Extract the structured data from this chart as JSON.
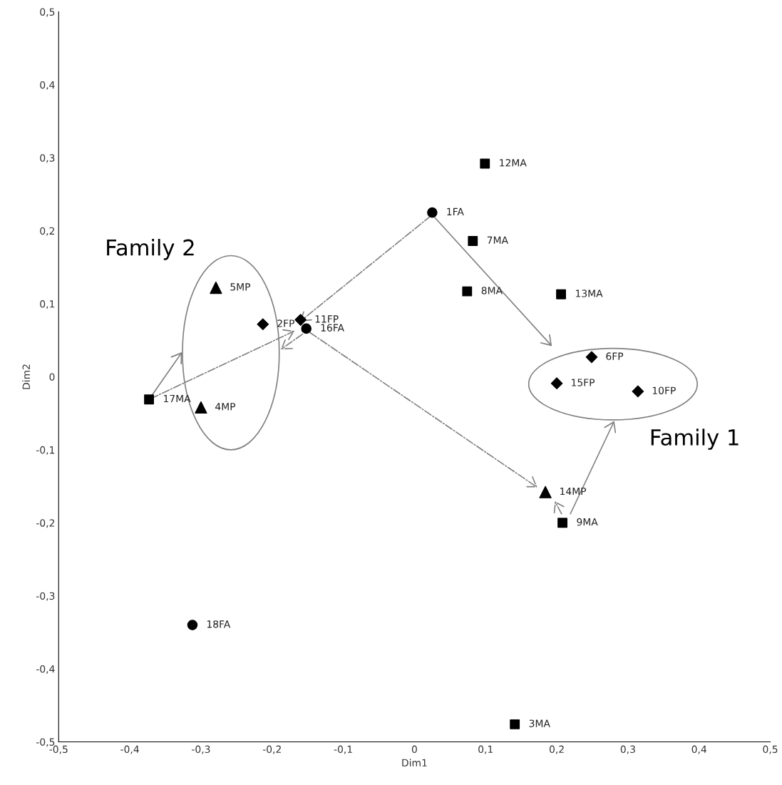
{
  "chart_data": {
    "type": "scatter",
    "xlabel": "Dim1",
    "ylabel": "Dim2",
    "xlim": [
      -0.5,
      0.5
    ],
    "ylim": [
      -0.5,
      0.5
    ],
    "xticks": [
      {
        "value": -0.5,
        "label": "-0,5"
      },
      {
        "value": -0.4,
        "label": "-0,4"
      },
      {
        "value": -0.3,
        "label": "-0,3"
      },
      {
        "value": -0.2,
        "label": "-0,2"
      },
      {
        "value": -0.1,
        "label": "-0,1"
      },
      0,
      {
        "value": 0.1,
        "label": "0,1"
      },
      {
        "value": 0.2,
        "label": "0,2"
      },
      {
        "value": 0.3,
        "label": "0,3"
      },
      {
        "value": 0.4,
        "label": "0,4"
      },
      {
        "value": 0.5,
        "label": "0,5"
      }
    ],
    "yticks": [
      {
        "value": -0.5,
        "label": "-0,5"
      },
      {
        "value": -0.4,
        "label": "-0,4"
      },
      {
        "value": -0.3,
        "label": "-0,3"
      },
      {
        "value": -0.2,
        "label": "-0,2"
      },
      {
        "value": -0.1,
        "label": "-0,1"
      },
      0,
      {
        "value": 0.1,
        "label": "0,1"
      },
      {
        "value": 0.2,
        "label": "0,2"
      },
      {
        "value": 0.3,
        "label": "0,3"
      },
      {
        "value": 0.4,
        "label": "0,4"
      },
      {
        "value": 0.5,
        "label": "0,5"
      }
    ],
    "grid": false,
    "series": [
      {
        "color": "#000000",
        "marker": "circle",
        "x": [
          0.025,
          -0.312,
          -0.152
        ],
        "values": [
          0.225,
          -0.34,
          0.066
        ]
      },
      {
        "color": "#000000",
        "marker": "square",
        "x": [
          0.099,
          0.082,
          0.074,
          0.206,
          0.208,
          0.141,
          -0.373
        ],
        "values": [
          0.292,
          0.186,
          0.117,
          0.113,
          -0.2,
          -0.476,
          -0.031
        ]
      },
      {
        "color": "#000000",
        "marker": "triangle",
        "x": [
          0.184,
          -0.3,
          -0.279
        ],
        "values": [
          -0.158,
          -0.042,
          0.122
        ]
      },
      {
        "color": "#000000",
        "marker": "diamond",
        "x": [
          0.249,
          0.2,
          0.314,
          -0.213,
          -0.16
        ],
        "values": [
          0.027,
          -0.009,
          -0.02,
          0.072,
          0.078
        ]
      }
    ],
    "annotations": [
      {
        "text": "1FA",
        "x": 0.025,
        "y": 0.225
      },
      {
        "text": "18FA",
        "x": -0.312,
        "y": -0.34
      },
      {
        "text": "16FA",
        "x": -0.152,
        "y": 0.066
      },
      {
        "text": "12MA",
        "x": 0.099,
        "y": 0.292
      },
      {
        "text": "7MA",
        "x": 0.082,
        "y": 0.186
      },
      {
        "text": "8MA",
        "x": 0.074,
        "y": 0.117
      },
      {
        "text": "13MA",
        "x": 0.206,
        "y": 0.113
      },
      {
        "text": "9MA",
        "x": 0.208,
        "y": -0.2
      },
      {
        "text": "3MA",
        "x": 0.141,
        "y": -0.476
      },
      {
        "text": "17MA",
        "x": -0.373,
        "y": -0.031
      },
      {
        "text": "14MP",
        "x": 0.184,
        "y": -0.158
      },
      {
        "text": "4MP",
        "x": -0.3,
        "y": -0.042
      },
      {
        "text": "5MP",
        "x": -0.279,
        "y": 0.122
      },
      {
        "text": "6FP",
        "x": 0.249,
        "y": 0.027
      },
      {
        "text": "15FP",
        "x": 0.2,
        "y": -0.009
      },
      {
        "text": "10FP",
        "x": 0.314,
        "y": -0.02
      },
      {
        "text": "2FP",
        "x": -0.213,
        "y": 0.072
      },
      {
        "text": "11FP",
        "x": -0.16,
        "y": 0.078
      },
      "Family 2",
      "Family 1"
    ]
  }
}
